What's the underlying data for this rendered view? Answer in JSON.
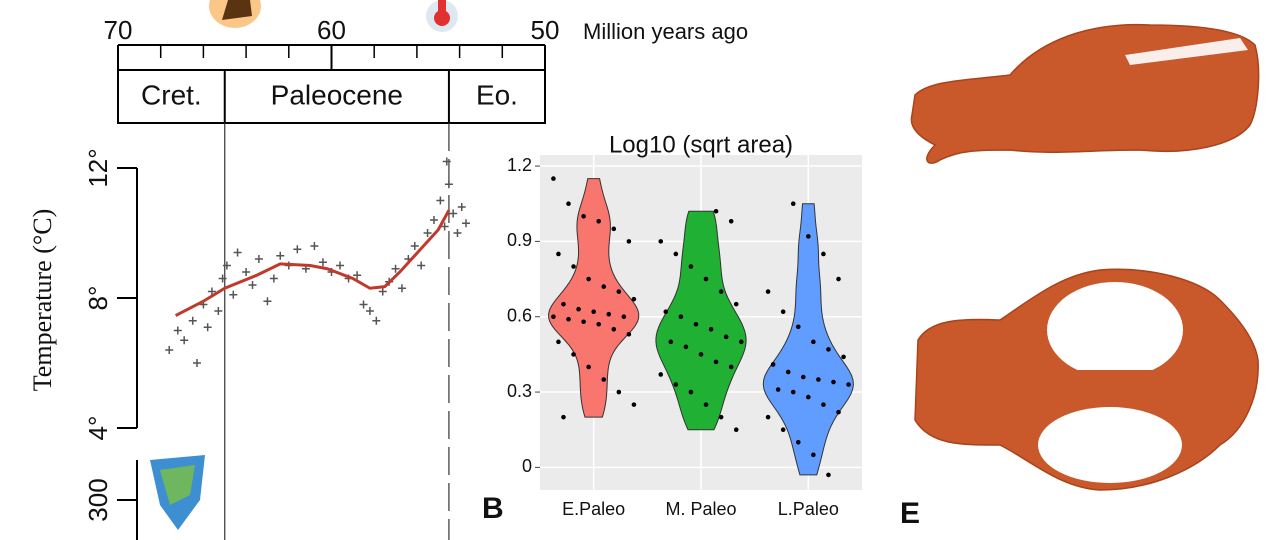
{
  "panel_labels": [
    "B",
    "E"
  ],
  "chart_data": [
    {
      "type": "timeline",
      "xlabel": "Million years ago",
      "xlim": [
        70,
        50
      ],
      "xticks": [
        70,
        60,
        50
      ],
      "xminor": [
        68,
        66,
        64,
        62,
        58,
        56,
        54,
        52
      ],
      "periods": [
        {
          "name": "Cret.",
          "start": 70,
          "end": 65
        },
        {
          "name": "Paleocene",
          "start": 65,
          "end": 54.5
        },
        {
          "name": "Eo.",
          "start": 54.5,
          "end": 50
        }
      ]
    },
    {
      "type": "line",
      "ylabel": "Temperature (°C)",
      "xlim": [
        70,
        50
      ],
      "ylim": [
        4,
        12
      ],
      "yticks": [
        {
          "value": 4,
          "label": "4°"
        },
        {
          "value": 8,
          "label": "8°"
        },
        {
          "value": 12,
          "label": "12°"
        }
      ],
      "series": [
        {
          "type": "scatter",
          "color": "#555555",
          "x": [
            67.6,
            67.2,
            66.9,
            66.5,
            66.3,
            66.0,
            65.8,
            65.6,
            65.3,
            65.1,
            64.9,
            64.6,
            64.4,
            64.0,
            63.7,
            63.4,
            63.0,
            62.7,
            62.4,
            62.0,
            61.6,
            61.2,
            60.8,
            60.4,
            60.0,
            59.6,
            59.2,
            58.8,
            58.5,
            58.2,
            57.9,
            57.6,
            57.3,
            57.0,
            56.7,
            56.4,
            56.1,
            55.8,
            55.5,
            55.2,
            54.9,
            54.7,
            54.6,
            54.5,
            54.3,
            54.1,
            53.9,
            53.7
          ],
          "values": [
            6.4,
            7.0,
            6.7,
            7.3,
            6.0,
            7.8,
            7.1,
            8.2,
            7.6,
            8.6,
            9.0,
            8.1,
            9.4,
            8.8,
            8.4,
            9.2,
            7.9,
            8.6,
            9.3,
            9.0,
            9.5,
            8.9,
            9.6,
            9.1,
            8.8,
            9.0,
            8.6,
            8.7,
            7.8,
            7.6,
            7.3,
            8.2,
            8.5,
            8.9,
            8.3,
            9.2,
            9.6,
            9.0,
            10.0,
            10.4,
            11.0,
            10.2,
            12.2,
            11.5,
            10.6,
            10.0,
            10.8,
            10.3
          ]
        },
        {
          "type": "line",
          "color": "#c0392b",
          "x": [
            67.3,
            66,
            65,
            63.5,
            62.4,
            61,
            60.2,
            59,
            58.2,
            57.5,
            56.8,
            55.9,
            55,
            54.5
          ],
          "values": [
            7.46,
            7.9,
            8.3,
            8.7,
            9.05,
            9.0,
            8.9,
            8.6,
            8.3,
            8.35,
            8.8,
            9.45,
            10.1,
            10.7
          ]
        }
      ]
    },
    {
      "type": "violin",
      "title": "Log10 (sqrt area)",
      "ylim": [
        -0.09,
        1.244
      ],
      "yticks": [
        0,
        0.3,
        0.6,
        0.9,
        1.2
      ],
      "grid": true,
      "categories": [
        "E.Paleo",
        "M. Paleo",
        "L.Paleo"
      ],
      "series": [
        {
          "color": "#f8766d",
          "values": [
            1.15,
            1.05,
            1.0,
            0.98,
            0.95,
            0.9,
            0.85,
            0.8,
            0.75,
            0.72,
            0.7,
            0.67,
            0.65,
            0.63,
            0.62,
            0.61,
            0.6,
            0.6,
            0.59,
            0.58,
            0.57,
            0.55,
            0.53,
            0.5,
            0.45,
            0.4,
            0.35,
            0.3,
            0.25,
            0.2
          ]
        },
        {
          "color": "#1fb034",
          "values": [
            1.02,
            0.98,
            0.9,
            0.85,
            0.8,
            0.75,
            0.7,
            0.65,
            0.62,
            0.6,
            0.57,
            0.55,
            0.52,
            0.5,
            0.5,
            0.48,
            0.45,
            0.42,
            0.4,
            0.37,
            0.33,
            0.3,
            0.25,
            0.2,
            0.15
          ]
        },
        {
          "color": "#619cff",
          "values": [
            1.05,
            0.92,
            0.85,
            0.75,
            0.7,
            0.62,
            0.56,
            0.5,
            0.47,
            0.44,
            0.41,
            0.38,
            0.36,
            0.35,
            0.34,
            0.33,
            0.31,
            0.3,
            0.28,
            0.25,
            0.22,
            0.2,
            0.15,
            0.1,
            0.05,
            -0.03
          ]
        }
      ]
    },
    {
      "type": "fragment",
      "ylim": [
        0,
        400
      ],
      "yticks": [
        300
      ]
    }
  ]
}
